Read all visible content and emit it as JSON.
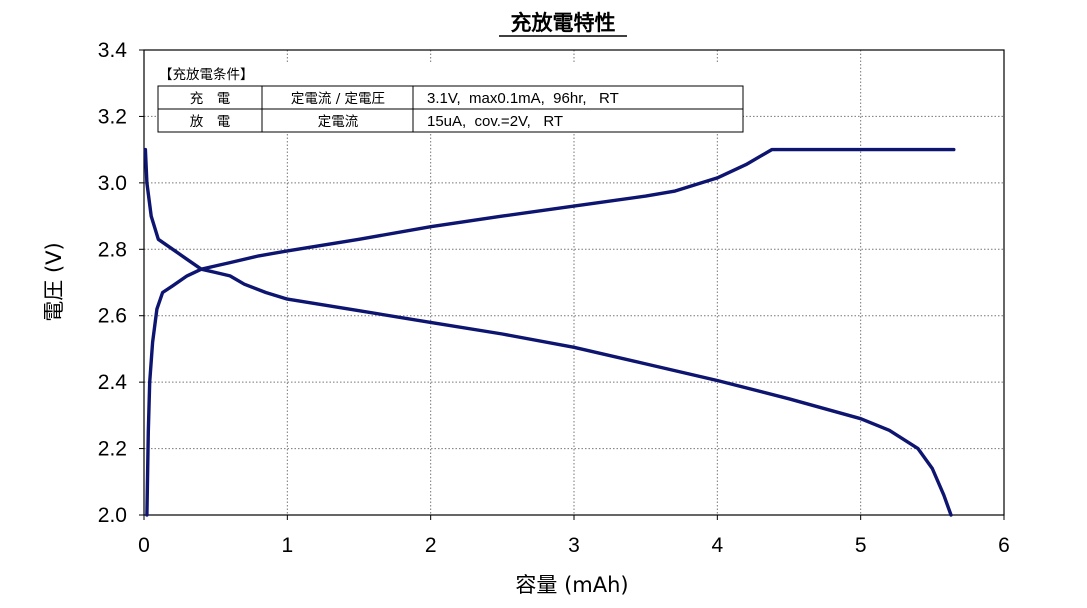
{
  "chart_data": {
    "type": "line",
    "title": "充放電特性",
    "xlabel": "容量 (mAh)",
    "ylabel": "電圧 (V)",
    "xlim": [
      0,
      6
    ],
    "ylim": [
      2.0,
      3.4
    ],
    "x_ticks": [
      "0",
      "1",
      "2",
      "3",
      "4",
      "5",
      "6"
    ],
    "y_ticks": [
      "2.0",
      "2.2",
      "2.4",
      "2.6",
      "2.8",
      "3.0",
      "3.2",
      "3.4"
    ],
    "grid": true,
    "series": [
      {
        "color": "#0d1570",
        "points": [
          [
            0.02,
            2.0
          ],
          [
            0.03,
            2.25
          ],
          [
            0.04,
            2.4
          ],
          [
            0.06,
            2.52
          ],
          [
            0.09,
            2.62
          ],
          [
            0.13,
            2.67
          ],
          [
            0.2,
            2.69
          ],
          [
            0.3,
            2.72
          ],
          [
            0.4,
            2.74
          ],
          [
            0.5,
            2.75
          ],
          [
            0.6,
            2.76
          ],
          [
            0.8,
            2.78
          ],
          [
            1.0,
            2.795
          ],
          [
            1.5,
            2.83
          ],
          [
            2.0,
            2.868
          ],
          [
            2.5,
            2.9
          ],
          [
            3.0,
            2.93
          ],
          [
            3.5,
            2.96
          ],
          [
            3.7,
            2.975
          ],
          [
            4.0,
            3.015
          ],
          [
            4.2,
            3.055
          ],
          [
            4.38,
            3.1
          ],
          [
            4.5,
            3.1
          ],
          [
            5.0,
            3.1
          ],
          [
            5.5,
            3.1
          ],
          [
            5.65,
            3.1
          ]
        ]
      },
      {
        "color": "#0d1570",
        "points": [
          [
            0.01,
            3.1
          ],
          [
            0.02,
            3.0
          ],
          [
            0.05,
            2.9
          ],
          [
            0.1,
            2.83
          ],
          [
            0.2,
            2.8
          ],
          [
            0.3,
            2.77
          ],
          [
            0.4,
            2.74
          ],
          [
            0.5,
            2.73
          ],
          [
            0.6,
            2.72
          ],
          [
            0.7,
            2.695
          ],
          [
            0.85,
            2.67
          ],
          [
            1.0,
            2.65
          ],
          [
            1.5,
            2.615
          ],
          [
            2.0,
            2.58
          ],
          [
            2.5,
            2.545
          ],
          [
            3.0,
            2.505
          ],
          [
            3.5,
            2.455
          ],
          [
            4.0,
            2.405
          ],
          [
            4.5,
            2.35
          ],
          [
            5.0,
            2.29
          ],
          [
            5.2,
            2.255
          ],
          [
            5.4,
            2.2
          ],
          [
            5.5,
            2.14
          ],
          [
            5.58,
            2.06
          ],
          [
            5.63,
            2.0
          ]
        ]
      }
    ]
  },
  "conditions": {
    "header": "【充放電条件】",
    "rows": [
      {
        "label": "充　電",
        "method": "定電流 / 定電圧",
        "params": "3.1V,  max0.1mA,  96hr,   RT"
      },
      {
        "label": "放　電",
        "method": "定電流",
        "params": "15uA,  cov.=2V,   RT"
      }
    ]
  }
}
